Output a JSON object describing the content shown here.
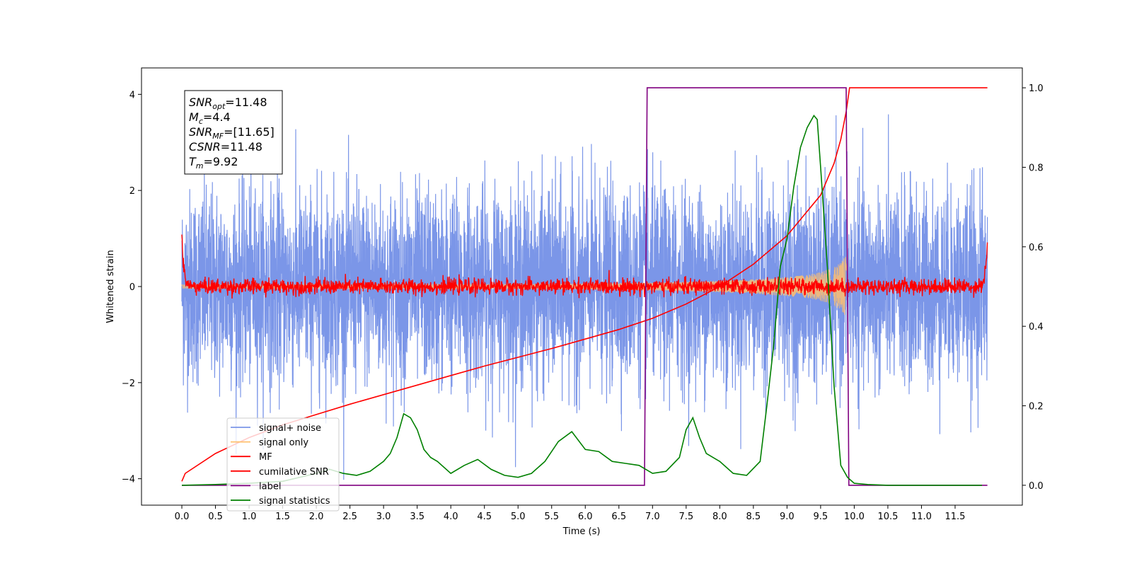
{
  "chart_data": {
    "type": "line",
    "title": "",
    "xlabel": "Time (s)",
    "ylabel": "Whitened strain",
    "xlim": [
      -0.6,
      12.5
    ],
    "ylim": [
      -4.55,
      4.55
    ],
    "ylim_right": [
      -0.05,
      1.05
    ],
    "x_ticks": [
      0.0,
      0.5,
      1.0,
      1.5,
      2.0,
      2.5,
      3.0,
      3.5,
      4.0,
      4.5,
      5.0,
      5.5,
      6.0,
      6.5,
      7.0,
      7.5,
      8.0,
      8.5,
      9.0,
      9.5,
      10.0,
      10.5,
      11.0,
      11.5
    ],
    "x_tick_labels": [
      "0.0",
      "0.5",
      "1.0",
      "1.5",
      "2.0",
      "2.5",
      "3.0",
      "3.5",
      "4.0",
      "4.5",
      "5.0",
      "5.5",
      "6.0",
      "6.5",
      "7.0",
      "7.5",
      "8.0",
      "8.5",
      "9.0",
      "9.5",
      "10.0",
      "10.5",
      "11.0",
      "11.5"
    ],
    "y_ticks_left": [
      4,
      2,
      0,
      -2,
      -4
    ],
    "y_tick_labels_left": [
      "4",
      "2",
      "0",
      "−2",
      "−4"
    ],
    "y_ticks_right": [
      1.0,
      0.8,
      0.6,
      0.4,
      0.2,
      0.0
    ],
    "y_tick_labels_right": [
      "1.0",
      "0.8",
      "0.6",
      "0.4",
      "0.2",
      "0.0"
    ],
    "grid": false,
    "legend_position": "lower-left",
    "legend": [
      {
        "name": "signal+ noise",
        "color": "#7b96e8"
      },
      {
        "name": "signal only",
        "color": "#ffc06e"
      },
      {
        "name": "MF",
        "color": "#ff0000"
      },
      {
        "name": "cumilative SNR",
        "color": "#ff0000"
      },
      {
        "name": "label",
        "color": "#800080"
      },
      {
        "name": "signal statistics",
        "color": "#008000"
      }
    ],
    "annotation": {
      "lines": [
        {
          "sym": "SNR",
          "sub": "opt",
          "val": "=11.48"
        },
        {
          "sym": "M",
          "sub": "c",
          "val": "=4.4"
        },
        {
          "sym": "SNR",
          "sub": "MF",
          "val": "=[11.65]"
        },
        {
          "sym": "CSNR",
          "sub": "",
          "val": "=11.48"
        },
        {
          "sym": "T",
          "sub": "m",
          "val": "=9.92"
        }
      ]
    },
    "series": [
      {
        "name": "signal+ noise",
        "axis": "left",
        "color": "#7b96e8",
        "x_range": [
          0.0,
          11.98
        ],
        "typical_amplitude": 1.0,
        "max_amplitude": 4.1
      },
      {
        "name": "signal only",
        "axis": "left",
        "color": "#ffc06e",
        "x": [
          0.0,
          5.0,
          6.0,
          7.0,
          7.5,
          8.0,
          8.5,
          9.0,
          9.3,
          9.5,
          9.7,
          9.8,
          9.88,
          9.92
        ],
        "envelope": [
          0.04,
          0.05,
          0.06,
          0.08,
          0.1,
          0.12,
          0.15,
          0.2,
          0.24,
          0.3,
          0.4,
          0.5,
          0.65,
          0.0
        ]
      },
      {
        "name": "MF",
        "axis": "left",
        "color": "#ff0000",
        "x_range": [
          0.0,
          11.98
        ],
        "typical_amplitude": 0.1,
        "endpoint_value": 1.0
      },
      {
        "name": "cumilative SNR",
        "axis": "right",
        "color": "#ff0000",
        "x": [
          0.0,
          0.05,
          0.5,
          1.0,
          1.5,
          2.0,
          2.5,
          3.0,
          3.5,
          4.0,
          4.5,
          5.0,
          5.5,
          6.0,
          6.5,
          7.0,
          7.5,
          8.0,
          8.5,
          9.0,
          9.5,
          9.7,
          9.8,
          9.88,
          9.93,
          11.98
        ],
        "y": [
          0.01,
          0.03,
          0.08,
          0.12,
          0.152,
          0.178,
          0.204,
          0.228,
          0.252,
          0.276,
          0.3,
          0.322,
          0.344,
          0.368,
          0.392,
          0.42,
          0.456,
          0.5,
          0.556,
          0.628,
          0.73,
          0.81,
          0.87,
          0.94,
          1.0,
          1.0
        ]
      },
      {
        "name": "label",
        "axis": "right",
        "color": "#800080",
        "x": [
          0.0,
          6.88,
          6.92,
          9.88,
          9.92,
          11.98
        ],
        "y": [
          0.0,
          0.0,
          1.0,
          1.0,
          0.0,
          0.0
        ]
      },
      {
        "name": "signal statistics",
        "axis": "right",
        "color": "#008000",
        "x": [
          0.0,
          0.5,
          1.0,
          1.5,
          2.0,
          2.2,
          2.4,
          2.6,
          2.8,
          3.0,
          3.1,
          3.2,
          3.3,
          3.4,
          3.5,
          3.6,
          3.7,
          3.8,
          4.0,
          4.2,
          4.4,
          4.6,
          4.8,
          5.0,
          5.2,
          5.4,
          5.6,
          5.8,
          6.0,
          6.2,
          6.4,
          6.6,
          6.8,
          7.0,
          7.2,
          7.4,
          7.5,
          7.6,
          7.7,
          7.8,
          8.0,
          8.2,
          8.4,
          8.6,
          8.7,
          8.8,
          8.9,
          9.0,
          9.1,
          9.2,
          9.3,
          9.4,
          9.45,
          9.5,
          9.6,
          9.7,
          9.8,
          9.9,
          10.0,
          10.2,
          10.5,
          11.0,
          11.5,
          11.9
        ],
        "y": [
          0.0,
          0.002,
          0.005,
          0.01,
          0.03,
          0.04,
          0.03,
          0.025,
          0.035,
          0.06,
          0.08,
          0.12,
          0.18,
          0.17,
          0.14,
          0.09,
          0.07,
          0.06,
          0.03,
          0.05,
          0.065,
          0.04,
          0.025,
          0.02,
          0.03,
          0.06,
          0.11,
          0.135,
          0.09,
          0.085,
          0.06,
          0.055,
          0.05,
          0.03,
          0.035,
          0.07,
          0.14,
          0.17,
          0.12,
          0.08,
          0.06,
          0.03,
          0.025,
          0.06,
          0.2,
          0.35,
          0.55,
          0.62,
          0.75,
          0.85,
          0.9,
          0.93,
          0.92,
          0.8,
          0.55,
          0.25,
          0.05,
          0.02,
          0.005,
          0.002,
          0.0,
          0.0,
          0.0,
          0.0
        ]
      }
    ]
  }
}
